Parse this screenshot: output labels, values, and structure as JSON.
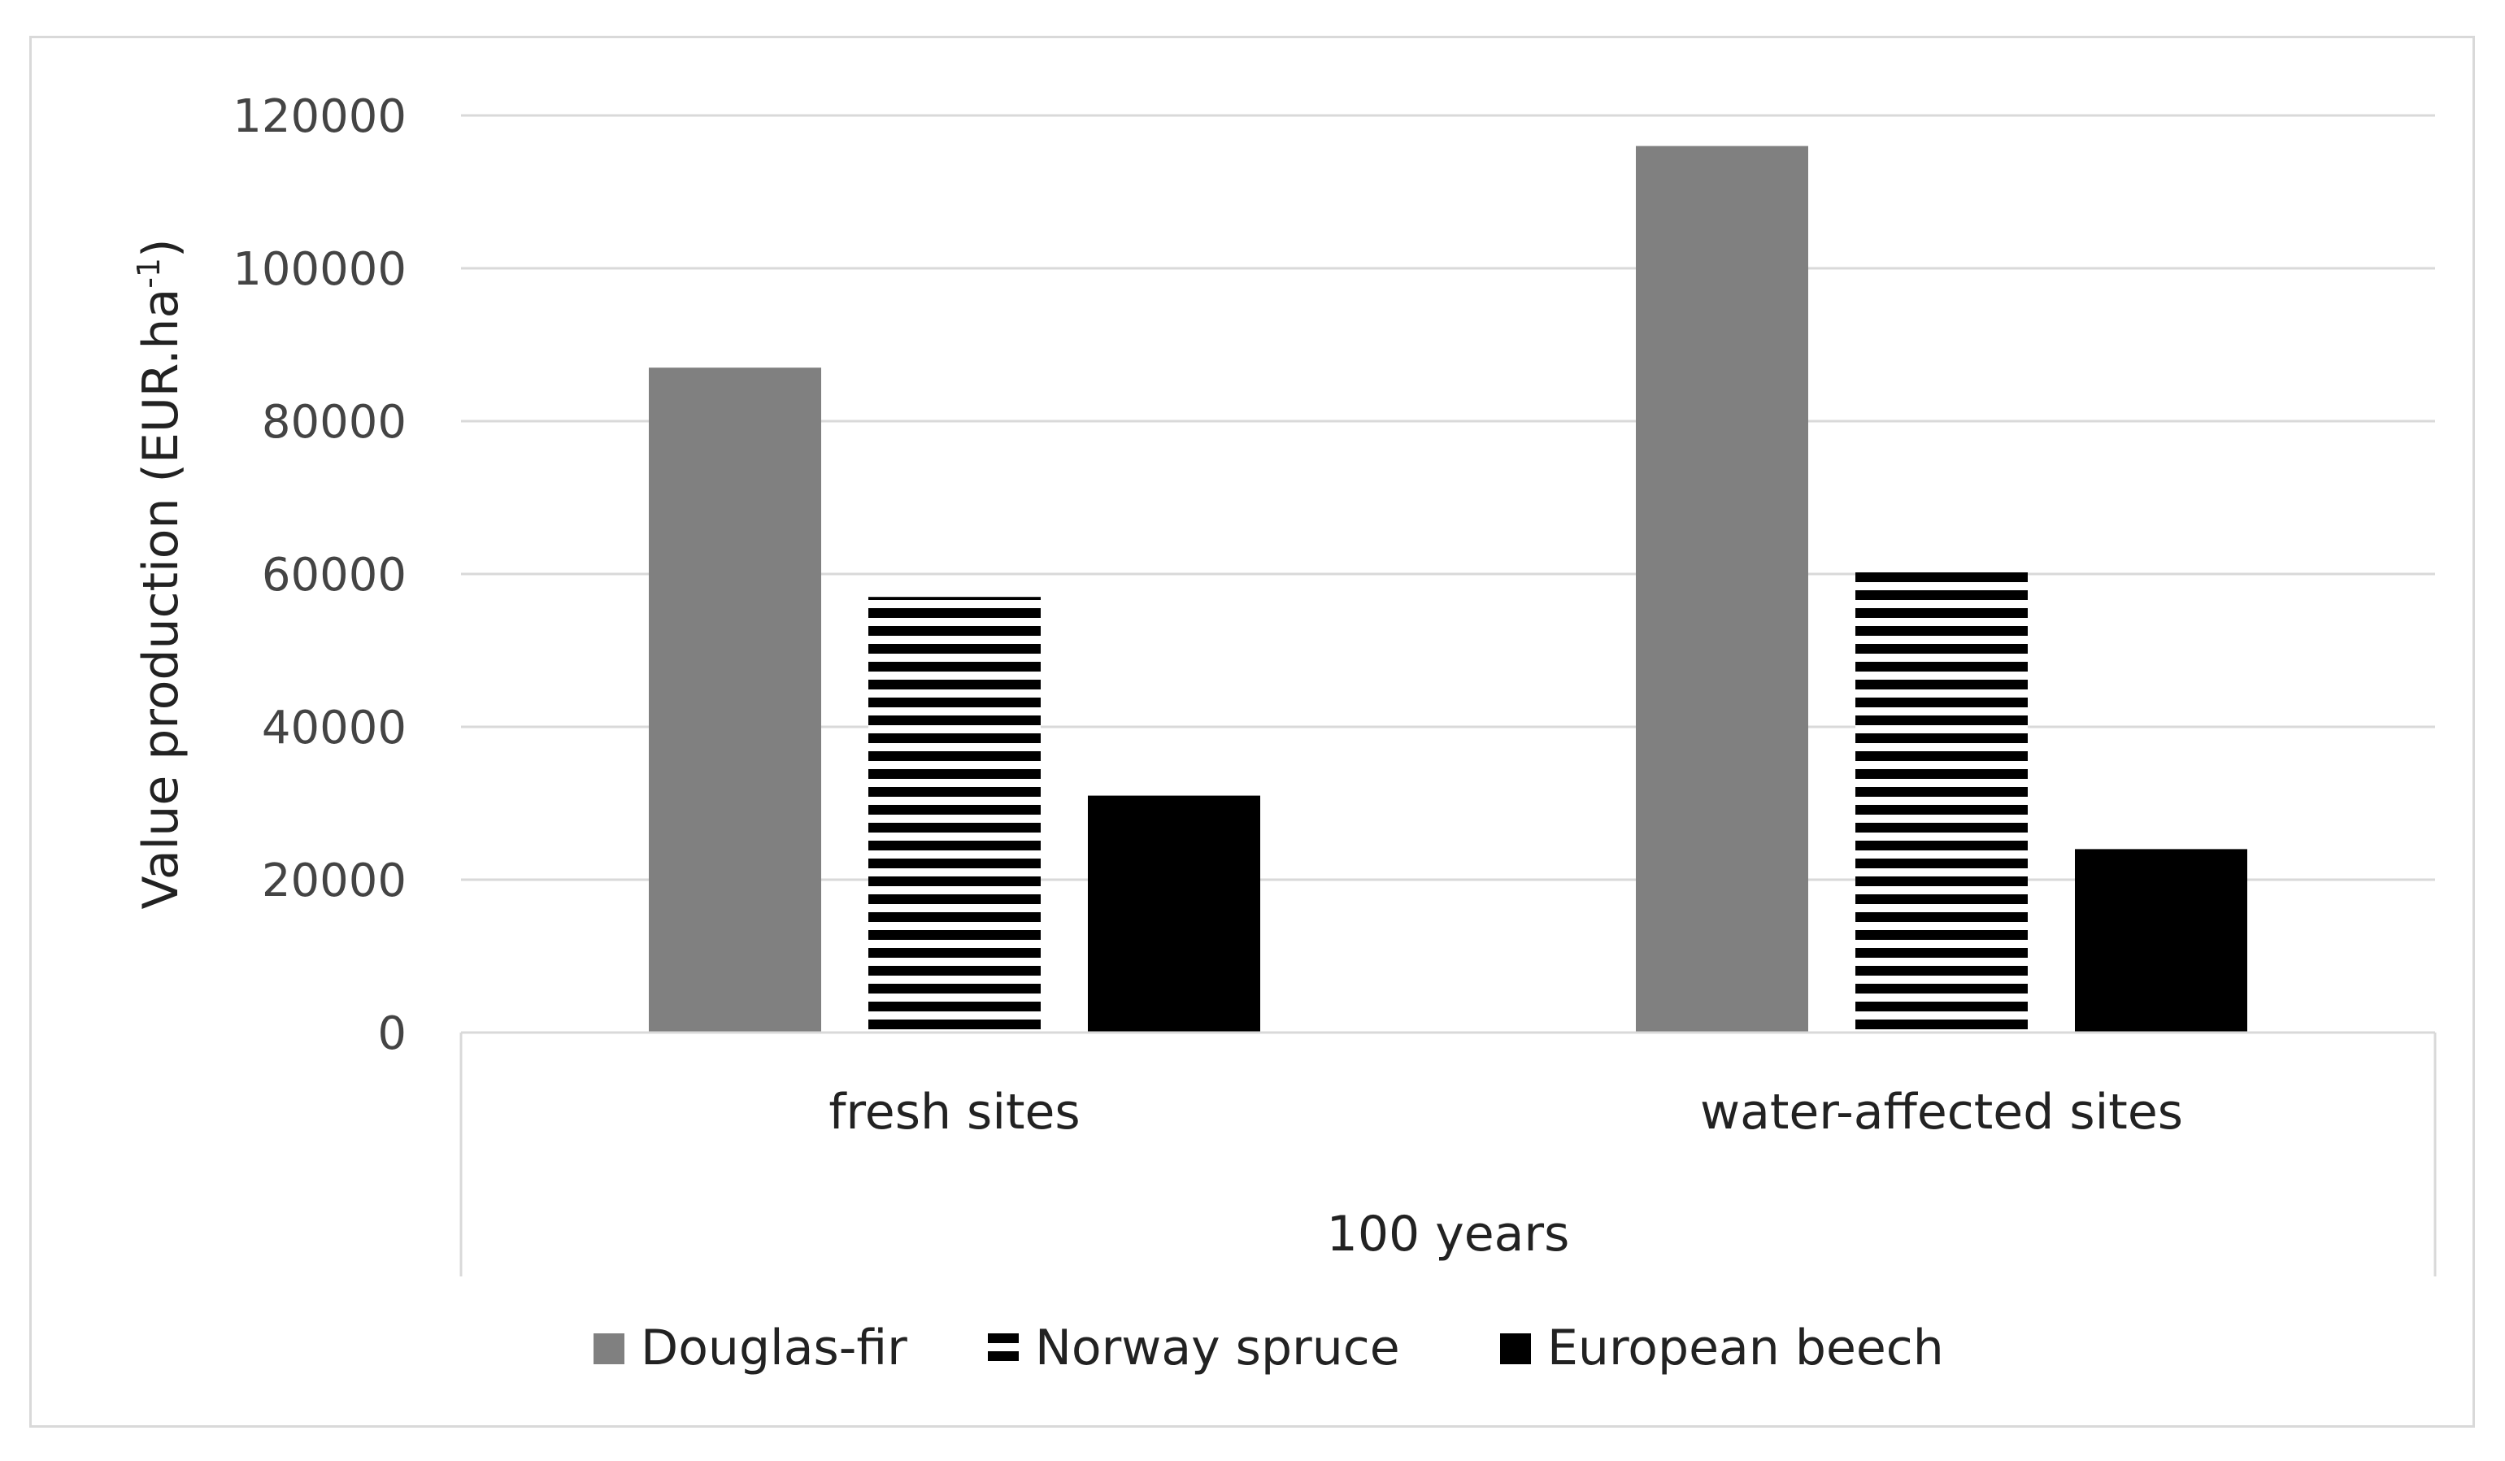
{
  "chart_data": {
    "type": "bar",
    "title": "",
    "ylabel": "Value production (EUR.ha",
    "ylabel_sup": "-1",
    "ylabel_close": ")",
    "group_label": "100 years",
    "categories": [
      "fresh sites",
      "water-affected sites"
    ],
    "ylim": [
      0,
      120000
    ],
    "yticks": [
      "0",
      "20000",
      "40000",
      "60000",
      "80000",
      "100000",
      "120000"
    ],
    "grid": true,
    "legend_position": "bottom",
    "series": [
      {
        "name": "Douglas-fir",
        "values": [
          87000,
          116000
        ],
        "color": "#808080",
        "pattern": "solid"
      },
      {
        "name": "Norway spruce",
        "values": [
          57000,
          60500
        ],
        "color": "#000000",
        "pattern": "horizontal-stripes"
      },
      {
        "name": "European beech",
        "values": [
          31000,
          24000
        ],
        "color": "#000000",
        "pattern": "solid"
      }
    ]
  }
}
